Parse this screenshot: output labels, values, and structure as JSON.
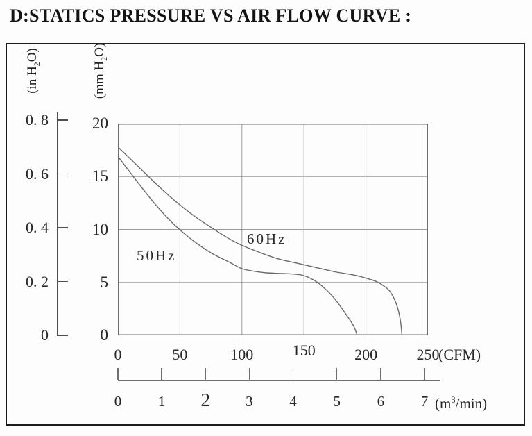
{
  "page": {
    "title": "D:STATICS PRESSURE VS AIR FLOW CURVE :"
  },
  "chart_data": {
    "type": "line",
    "title": "Statics Pressure vs Air Flow Curve",
    "xlabel": "(CFM)",
    "x2label": "(m3/min)",
    "ylabel": "(mm H2O)",
    "y2label": "(in H2O)",
    "xlim": [
      0,
      250
    ],
    "x2lim": [
      0,
      7.08
    ],
    "ylim": [
      0,
      20
    ],
    "y2lim": [
      0,
      0.8
    ],
    "grid": "on",
    "x_ticks_cfm": [
      0,
      50,
      100,
      150,
      200,
      250
    ],
    "x_ticks_m3min": [
      0,
      1,
      2,
      3,
      4,
      5,
      6,
      7
    ],
    "y_ticks_mmh2o": [
      20,
      15,
      10,
      5,
      0
    ],
    "y_ticks_inh2o": [
      0.8,
      0.6,
      0.4,
      0.2,
      0
    ],
    "series": [
      {
        "name": "50Hz",
        "x_unit": "CFM",
        "y_unit": "mm H2O",
        "points": [
          [
            0,
            16.9
          ],
          [
            15,
            14.6
          ],
          [
            30,
            12.4
          ],
          [
            45,
            10.5
          ],
          [
            60,
            9.0
          ],
          [
            75,
            7.8
          ],
          [
            90,
            6.9
          ],
          [
            100,
            6.3
          ],
          [
            110,
            6.05
          ],
          [
            120,
            5.9
          ],
          [
            130,
            5.85
          ],
          [
            140,
            5.8
          ],
          [
            148,
            5.7
          ],
          [
            155,
            5.4
          ],
          [
            161,
            5.0
          ],
          [
            167,
            4.4
          ],
          [
            173,
            3.7
          ],
          [
            179,
            2.8
          ],
          [
            185,
            1.8
          ],
          [
            190,
            0.9
          ],
          [
            193,
            0
          ]
        ]
      },
      {
        "name": "60Hz",
        "x_unit": "CFM",
        "y_unit": "mm H2O",
        "points": [
          [
            0,
            17.8
          ],
          [
            15,
            16.1
          ],
          [
            30,
            14.4
          ],
          [
            45,
            12.8
          ],
          [
            60,
            11.4
          ],
          [
            75,
            10.2
          ],
          [
            90,
            9.1
          ],
          [
            100,
            8.5
          ],
          [
            115,
            7.8
          ],
          [
            130,
            7.2
          ],
          [
            145,
            6.8
          ],
          [
            160,
            6.4
          ],
          [
            175,
            6.0
          ],
          [
            190,
            5.7
          ],
          [
            200,
            5.4
          ],
          [
            208,
            5.1
          ],
          [
            214,
            4.7
          ],
          [
            219,
            4.2
          ],
          [
            223,
            3.4
          ],
          [
            226,
            2.4
          ],
          [
            228,
            1.2
          ],
          [
            229,
            0
          ]
        ]
      }
    ]
  },
  "axes": {
    "in_scale": {
      "label_pre": "(in H",
      "label_sub": "2",
      "label_post": "O)",
      "ticks": [
        "0. 8",
        "0. 6",
        "0. 4",
        "0. 2",
        "0"
      ],
      "values": [
        0.8,
        0.6,
        0.4,
        0.2,
        0
      ]
    },
    "mm_scale": {
      "label_pre": "(mm H",
      "label_sub": "2",
      "label_post": "O)",
      "ticks": [
        "20",
        "15",
        "10",
        "5",
        "0"
      ],
      "values": [
        20,
        15,
        10,
        5,
        0
      ]
    },
    "cfm_scale": {
      "ticks": [
        "0",
        "50",
        "100",
        "150",
        "200",
        "250"
      ],
      "values": [
        0,
        50,
        100,
        150,
        200,
        250
      ],
      "unit": "(CFM)"
    },
    "m3_scale": {
      "ticks": [
        "0",
        "1",
        "2",
        "3",
        "4",
        "5",
        "6",
        "7"
      ],
      "values": [
        0,
        1,
        2,
        3,
        4,
        5,
        6,
        7
      ],
      "unit_pre": "(m",
      "unit_sup": "3",
      "unit_post": "/min)"
    }
  },
  "annotations": {
    "curve_50hz": "50Hz",
    "curve_60hz": "60Hz"
  },
  "colors": {
    "ink": "#1c1c1c",
    "grid": "#9a9a9a",
    "curve": "#6a6a6a",
    "plot_border": "#6e6e6e",
    "frame": "#1d1d1d",
    "background": "#fdfdfd"
  }
}
